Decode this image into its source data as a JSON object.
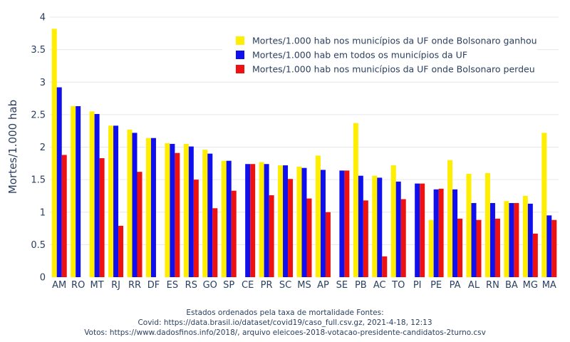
{
  "chart_data": {
    "type": "bar",
    "ylabel": "Mortes/1.000 hab",
    "ylim": [
      0,
      4
    ],
    "yticks": [
      "0",
      "0.5",
      "1",
      "1.5",
      "2",
      "2.5",
      "3",
      "3.5",
      "4"
    ],
    "grid": true,
    "legend_position": "top-right",
    "categories": [
      "AM",
      "RO",
      "MT",
      "RJ",
      "RR",
      "DF",
      "ES",
      "RS",
      "GO",
      "SP",
      "CE",
      "PR",
      "SC",
      "MS",
      "AP",
      "SE",
      "PB",
      "AC",
      "TO",
      "PI",
      "PE",
      "PA",
      "AL",
      "RN",
      "BA",
      "MG",
      "MA"
    ],
    "series": [
      {
        "name": "Mortes/1.000 hab nos municípios da UF onde Bolsonaro ganhou",
        "color": "#ffee00",
        "values": [
          3.82,
          2.63,
          2.55,
          2.33,
          2.27,
          2.14,
          2.06,
          2.05,
          1.96,
          1.79,
          null,
          1.77,
          1.72,
          1.7,
          1.87,
          null,
          2.37,
          1.56,
          1.72,
          null,
          0.88,
          1.8,
          1.59,
          1.6,
          1.17,
          1.25,
          2.22
        ]
      },
      {
        "name": "Mortes/1.000 hab em todos os municípios da UF",
        "color": "#1010ee",
        "values": [
          2.92,
          2.63,
          2.51,
          2.33,
          2.22,
          2.14,
          2.05,
          2.01,
          1.9,
          1.79,
          1.74,
          1.74,
          1.72,
          1.68,
          1.65,
          1.64,
          1.56,
          1.53,
          1.47,
          1.44,
          1.35,
          1.35,
          1.14,
          1.14,
          1.14,
          1.13,
          0.95
        ]
      },
      {
        "name": "Mortes/1.000 hab nos municípios da UF onde Bolsonaro perdeu",
        "color": "#ee1111",
        "values": [
          1.88,
          null,
          1.83,
          0.79,
          1.62,
          null,
          1.91,
          1.5,
          1.06,
          1.33,
          1.74,
          1.26,
          1.51,
          1.21,
          1.0,
          1.64,
          1.18,
          0.32,
          1.2,
          1.44,
          1.36,
          0.9,
          0.88,
          0.9,
          1.14,
          0.67,
          0.88
        ]
      }
    ]
  },
  "caption": {
    "line1": "Estados ordenados pela taxa de mortalidade   Fontes:",
    "line2": "Covid: https://data.brasil.io/dataset/covid19/caso_full.csv.gz, 2021-4-18, 12:13",
    "line3": "Votos: https://www.dadosfinos.info/2018/, arquivo eleicoes-2018-votacao-presidente-candidatos-2turno.csv"
  }
}
